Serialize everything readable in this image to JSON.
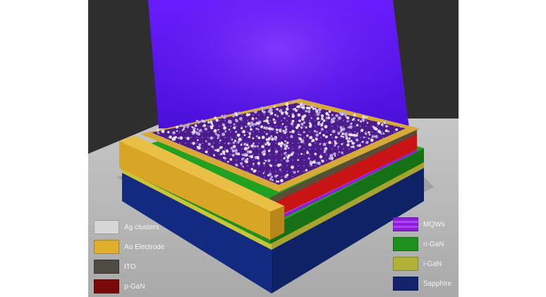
{
  "legend_left": [
    {
      "label": "Ag clusters",
      "color": "#d6d6d6",
      "icon": "ag-clusters-swatch"
    },
    {
      "label": "Au Electrode",
      "color": "#e2ae2e",
      "icon": "au-electrode-swatch"
    },
    {
      "label": "ITO",
      "color": "#4f4b43",
      "icon": "ito-swatch"
    },
    {
      "label": "p-GaN",
      "color": "#7a0a0a",
      "icon": "p-gan-swatch"
    }
  ],
  "legend_right": [
    {
      "label": "MQWs",
      "color": "#8b1fd6",
      "stripe": "#b040ff",
      "icon": "mqws-swatch"
    },
    {
      "label": "n-GaN",
      "color": "#1f8f1f",
      "icon": "n-gan-swatch"
    },
    {
      "label": "i-GaN",
      "color": "#b2b23a",
      "icon": "i-gan-swatch"
    },
    {
      "label": "Sapphire",
      "color": "#13236e",
      "icon": "sapphire-swatch"
    }
  ],
  "colors": {
    "backdrop": "#2e2e2e",
    "floor": "#b9b9b9",
    "light_beam": "#6a1cff",
    "sapphire": "#152c86",
    "i_gan": "#c9c43a",
    "n_gan": "#1f8f1f",
    "mqw": "#8b1fd6",
    "p_gan": "#b51212",
    "ito": "#5a4d35",
    "au": "#e2ae2e",
    "ag": "#d6d6d6"
  }
}
